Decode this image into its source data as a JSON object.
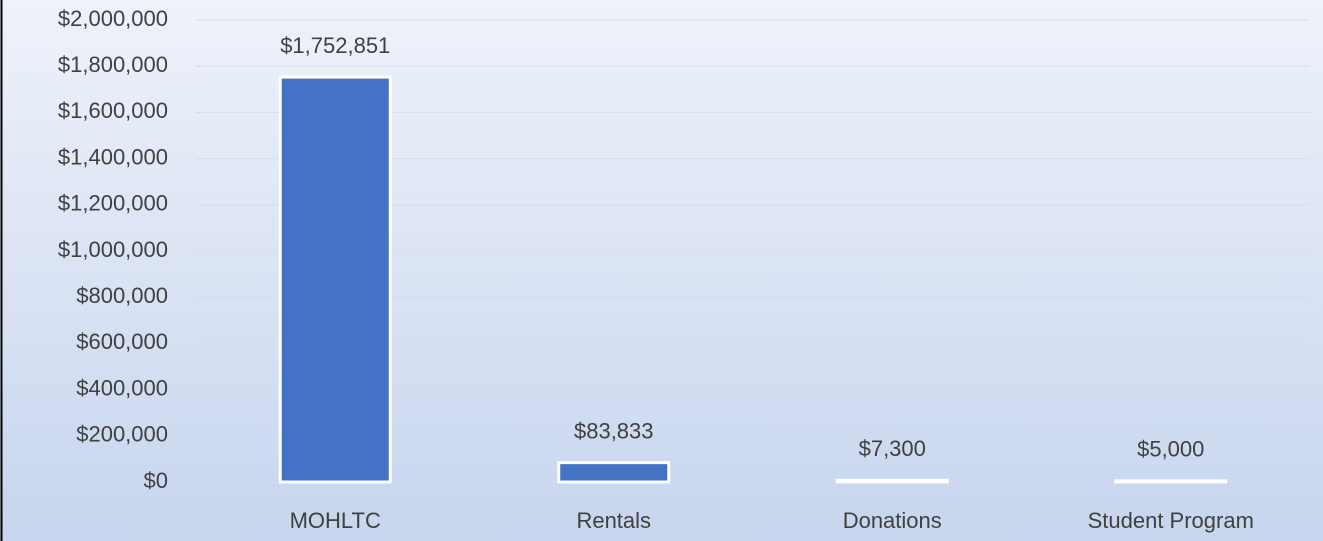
{
  "chart_data": {
    "type": "bar",
    "categories": [
      "MOHLTC",
      "Rentals",
      "Donations",
      "Student Program"
    ],
    "values": [
      1752851,
      83833,
      7300,
      5000
    ],
    "value_labels": [
      "$1,752,851",
      "$83,833",
      "$7,300",
      "$5,000"
    ],
    "color": "#4472c4",
    "ylim": [
      0,
      2000000
    ],
    "yticks": [
      {
        "value": 0,
        "label": "$0"
      },
      {
        "value": 200000,
        "label": "$200,000"
      },
      {
        "value": 400000,
        "label": "$400,000"
      },
      {
        "value": 600000,
        "label": "$600,000"
      },
      {
        "value": 800000,
        "label": "$800,000"
      },
      {
        "value": 1000000,
        "label": "$1,000,000"
      },
      {
        "value": 1200000,
        "label": "$1,200,000"
      },
      {
        "value": 1400000,
        "label": "$1,400,000"
      },
      {
        "value": 1600000,
        "label": "$1,600,000"
      },
      {
        "value": 1800000,
        "label": "$1,800,000"
      },
      {
        "value": 2000000,
        "label": "$2,000,000"
      }
    ],
    "grid": true
  }
}
